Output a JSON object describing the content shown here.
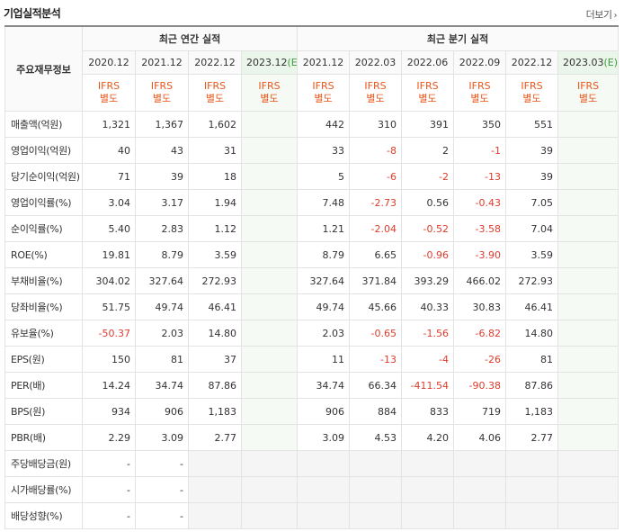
{
  "header": {
    "title": "기업실적분석",
    "more_label": "더보기",
    "more_chevron": "›"
  },
  "table": {
    "label_header": "주요재무정보",
    "annual_group": "최근 연간 실적",
    "quarter_group": "최근 분기 실적",
    "ifrs_line1": "IFRS",
    "ifrs_line2": "별도",
    "annual_periods": [
      "2020.12",
      "2021.12",
      "2022.12",
      "2023.12"
    ],
    "annual_est_suffix": "(E)",
    "quarter_periods": [
      "2021.12",
      "2022.03",
      "2022.06",
      "2022.09",
      "2022.12",
      "2023.03"
    ],
    "quarter_est_suffix": "(E)",
    "rows": [
      {
        "label": "매출액(억원)",
        "annual": [
          "1,321",
          "1,367",
          "1,602",
          ""
        ],
        "quarter": [
          "442",
          "310",
          "391",
          "350",
          "551",
          ""
        ]
      },
      {
        "label": "영업이익(억원)",
        "annual": [
          "40",
          "43",
          "31",
          ""
        ],
        "quarter": [
          "33",
          "-8",
          "2",
          "-1",
          "39",
          ""
        ]
      },
      {
        "label": "당기순이익(억원)",
        "annual": [
          "71",
          "39",
          "18",
          ""
        ],
        "quarter": [
          "5",
          "-6",
          "-2",
          "-13",
          "39",
          ""
        ]
      },
      {
        "label": "영업이익률(%)",
        "annual": [
          "3.04",
          "3.17",
          "1.94",
          ""
        ],
        "quarter": [
          "7.48",
          "-2.73",
          "0.56",
          "-0.43",
          "7.05",
          ""
        ]
      },
      {
        "label": "순이익률(%)",
        "annual": [
          "5.40",
          "2.83",
          "1.12",
          ""
        ],
        "quarter": [
          "1.21",
          "-2.04",
          "-0.52",
          "-3.58",
          "7.04",
          ""
        ]
      },
      {
        "label": "ROE(%)",
        "annual": [
          "19.81",
          "8.79",
          "3.59",
          ""
        ],
        "quarter": [
          "8.79",
          "6.65",
          "-0.96",
          "-3.90",
          "3.59",
          ""
        ]
      },
      {
        "label": "부채비율(%)",
        "annual": [
          "304.02",
          "327.64",
          "272.93",
          ""
        ],
        "quarter": [
          "327.64",
          "371.84",
          "393.29",
          "466.02",
          "272.93",
          ""
        ]
      },
      {
        "label": "당좌비율(%)",
        "annual": [
          "51.75",
          "49.74",
          "46.41",
          ""
        ],
        "quarter": [
          "49.74",
          "45.66",
          "40.33",
          "30.83",
          "46.41",
          ""
        ]
      },
      {
        "label": "유보율(%)",
        "annual": [
          "-50.37",
          "2.03",
          "14.80",
          ""
        ],
        "quarter": [
          "2.03",
          "-0.65",
          "-1.56",
          "-6.82",
          "14.80",
          ""
        ]
      },
      {
        "label": "EPS(원)",
        "annual": [
          "150",
          "81",
          "37",
          ""
        ],
        "quarter": [
          "11",
          "-13",
          "-4",
          "-26",
          "81",
          ""
        ]
      },
      {
        "label": "PER(배)",
        "annual": [
          "14.24",
          "34.74",
          "87.86",
          ""
        ],
        "quarter": [
          "34.74",
          "66.34",
          "-411.54",
          "-90.38",
          "87.86",
          ""
        ]
      },
      {
        "label": "BPS(원)",
        "annual": [
          "934",
          "906",
          "1,183",
          ""
        ],
        "quarter": [
          "906",
          "884",
          "833",
          "719",
          "1,183",
          ""
        ]
      },
      {
        "label": "PBR(배)",
        "annual": [
          "2.29",
          "3.09",
          "2.77",
          ""
        ],
        "quarter": [
          "3.09",
          "4.53",
          "4.20",
          "4.06",
          "2.77",
          ""
        ]
      },
      {
        "label": "주당배당금(원)",
        "annual": [
          "-",
          "-",
          null,
          null
        ],
        "quarter": [
          null,
          null,
          null,
          null,
          null,
          null
        ]
      },
      {
        "label": "시가배당률(%)",
        "annual": [
          "-",
          "-",
          null,
          null
        ],
        "quarter": [
          null,
          null,
          null,
          null,
          null,
          null
        ]
      },
      {
        "label": "배당성향(%)",
        "annual": [
          "-",
          "-",
          null,
          null
        ],
        "quarter": [
          null,
          null,
          null,
          null,
          null,
          null
        ]
      }
    ]
  },
  "colors": {
    "negative": "#e03c2c",
    "ifrs": "#e8561a",
    "estimate_bg": "#f5faf5",
    "estimate_text": "#3c9a3c"
  }
}
